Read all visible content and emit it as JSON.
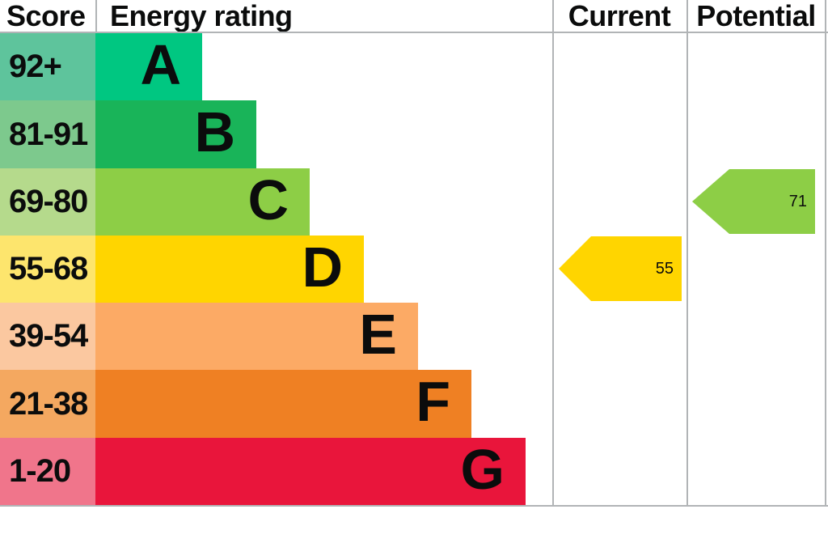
{
  "header": {
    "score": "Score",
    "energy_rating": "Energy rating",
    "current": "Current",
    "potential": "Potential"
  },
  "bands": [
    {
      "letter": "A",
      "score_range": "92+",
      "bar_color": "#00c781",
      "score_cell_color": "#5ec49c"
    },
    {
      "letter": "B",
      "score_range": "81-91",
      "bar_color": "#19b459",
      "score_cell_color": "#7dc98d"
    },
    {
      "letter": "C",
      "score_range": "69-80",
      "bar_color": "#8dce46",
      "score_cell_color": "#b5da8c"
    },
    {
      "letter": "D",
      "score_range": "55-68",
      "bar_color": "#ffd500",
      "score_cell_color": "#fde56d"
    },
    {
      "letter": "E",
      "score_range": "39-54",
      "bar_color": "#fcaa65",
      "score_cell_color": "#fbc8a0"
    },
    {
      "letter": "F",
      "score_range": "21-38",
      "bar_color": "#ef8023",
      "score_cell_color": "#f4a860"
    },
    {
      "letter": "G",
      "score_range": "1-20",
      "bar_color": "#e9153b",
      "score_cell_color": "#f0758b"
    }
  ],
  "current": {
    "label": "55",
    "value": 55,
    "band": "D",
    "arrow_color": "#ffd500"
  },
  "potential": {
    "label": "71",
    "value": 71,
    "band": "C",
    "arrow_color": "#8dce46"
  },
  "colors": {
    "grid_line": "#b1b4b6",
    "text": "#0b0c0c",
    "background": "#ffffff"
  },
  "chart_data": {
    "type": "bar",
    "title": "Energy rating",
    "columns": [
      "Score",
      "Energy rating",
      "Current",
      "Potential"
    ],
    "categories": [
      "A",
      "B",
      "C",
      "D",
      "E",
      "F",
      "G"
    ],
    "score_ranges": [
      "92+",
      "81-91",
      "69-80",
      "55-68",
      "39-54",
      "21-38",
      "1-20"
    ],
    "band_colors": [
      "#00c781",
      "#19b459",
      "#8dce46",
      "#ffd500",
      "#fcaa65",
      "#ef8023",
      "#e9153b"
    ],
    "current_rating": {
      "value": 55,
      "band": "D"
    },
    "potential_rating": {
      "value": 71,
      "band": "C"
    }
  }
}
